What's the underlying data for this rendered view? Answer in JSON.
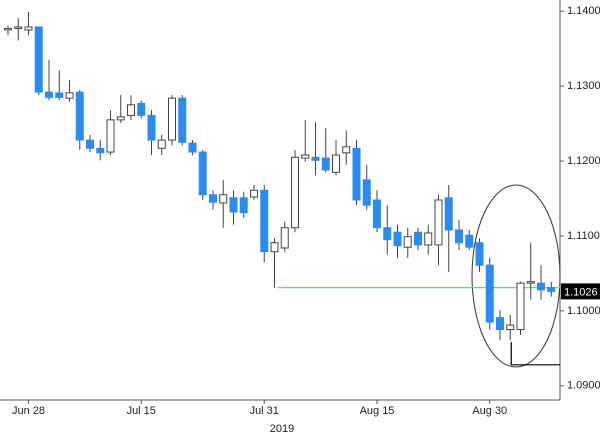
{
  "chart_data": {
    "type": "candlestick",
    "categories": [
      null,
      null,
      "Jun 28",
      null,
      null,
      null,
      null,
      null,
      null,
      null,
      null,
      null,
      null,
      "Jul 15",
      null,
      null,
      null,
      null,
      null,
      null,
      null,
      null,
      null,
      null,
      null,
      "Jul 31",
      null,
      null,
      null,
      null,
      null,
      null,
      null,
      null,
      null,
      null,
      "Aug 15",
      null,
      null,
      null,
      null,
      null,
      null,
      null,
      null,
      null,
      null,
      "Aug 30",
      null,
      null,
      null,
      null,
      null,
      null
    ],
    "open": [
      1.1375,
      1.1377,
      1.1375,
      1.1379,
      1.1292,
      1.1291,
      1.1284,
      1.1292,
      1.1228,
      1.1217,
      1.1212,
      1.1255,
      1.1261,
      1.1277,
      1.1261,
      1.1217,
      1.1228,
      1.1284,
      1.1224,
      1.1212,
      1.1155,
      1.1144,
      1.1151,
      1.1151,
      1.1152,
      1.1161,
      1.1079,
      1.1084,
      1.1111,
      1.1204,
      1.1205,
      1.1204,
      1.1185,
      1.1211,
      1.1217,
      1.1175,
      1.1148,
      1.1111,
      1.1105,
      1.1085,
      1.1105,
      1.1088,
      1.1088,
      1.1151,
      1.1108,
      1.1101,
      1.1091,
      1.1061,
      1.0991,
      1.0975,
      1.0975,
      1.1037,
      1.1037,
      1.1031
    ],
    "high": [
      1.1381,
      1.1391,
      1.1399,
      1.1379,
      1.1335,
      1.1321,
      1.1308,
      1.1295,
      1.1235,
      1.1228,
      1.1268,
      1.1288,
      1.1288,
      1.1281,
      1.1268,
      1.1235,
      1.1288,
      1.1288,
      1.1228,
      1.1215,
      1.1161,
      1.1175,
      1.1161,
      1.1159,
      1.1168,
      1.1168,
      1.1097,
      1.1119,
      1.1215,
      1.1255,
      1.1252,
      1.1244,
      1.1228,
      1.1241,
      1.1228,
      1.1195,
      1.1161,
      1.1141,
      1.1115,
      1.1111,
      1.1111,
      1.1115,
      1.1155,
      1.1168,
      1.1121,
      1.1108,
      1.1097,
      1.1071,
      1.1001,
      1.0995,
      1.1039,
      1.1091,
      1.1061,
      1.1039
    ],
    "low": [
      1.1368,
      1.1361,
      1.1368,
      1.1288,
      1.1281,
      1.1281,
      1.1279,
      1.1215,
      1.1212,
      1.1201,
      1.1208,
      1.1251,
      1.1255,
      1.1257,
      1.1208,
      1.1208,
      1.1221,
      1.1221,
      1.1208,
      1.1148,
      1.1135,
      1.1111,
      1.1115,
      1.1124,
      1.1148,
      1.1065,
      1.1031,
      1.1079,
      1.1105,
      1.1199,
      1.1181,
      1.1185,
      1.1181,
      1.1195,
      1.1141,
      1.1135,
      1.1105,
      1.1075,
      1.1071,
      1.1071,
      1.1081,
      1.1075,
      1.1061,
      1.1052,
      1.1081,
      1.1081,
      1.1052,
      1.0975,
      1.0961,
      1.0961,
      1.0968,
      1.1015,
      1.1015,
      1.1019
    ],
    "close": [
      1.1377,
      1.1379,
      1.1379,
      1.1292,
      1.1285,
      1.1285,
      1.1291,
      1.1228,
      1.1217,
      1.1211,
      1.1255,
      1.1259,
      1.1275,
      1.1261,
      1.1228,
      1.1228,
      1.1284,
      1.1225,
      1.1212,
      1.1155,
      1.1145,
      1.1155,
      1.1132,
      1.1131,
      1.1161,
      1.1079,
      1.1091,
      1.1111,
      1.1205,
      1.1208,
      1.1201,
      1.1188,
      1.1208,
      1.1219,
      1.1148,
      1.1141,
      1.1111,
      1.1095,
      1.1087,
      1.1099,
      1.1088,
      1.1104,
      1.1148,
      1.1108,
      1.1091,
      1.1085,
      1.1061,
      1.0985,
      1.0975,
      1.0981,
      1.1037,
      1.1039,
      1.1028,
      1.1026
    ],
    "up_color": "#ffffff",
    "down_color": "#2a8cf0",
    "ylim": [
      1.0881,
      1.1415
    ],
    "yticks": [
      {
        "value": 1.09,
        "label": "1.0900"
      },
      {
        "value": 1.1,
        "label": "1.1000"
      },
      {
        "value": 1.11,
        "label": "1.1100"
      },
      {
        "value": 1.12,
        "label": "1.1200"
      },
      {
        "value": 1.13,
        "label": "1.1300"
      },
      {
        "value": 1.14,
        "label": "1.1400"
      }
    ],
    "year_label": "2019",
    "last_price": 1.1026,
    "reference_lines": [
      {
        "value": 1.1031,
        "color": "#66dd66"
      },
      {
        "value": 1.0928,
        "color": "#000000"
      }
    ]
  }
}
